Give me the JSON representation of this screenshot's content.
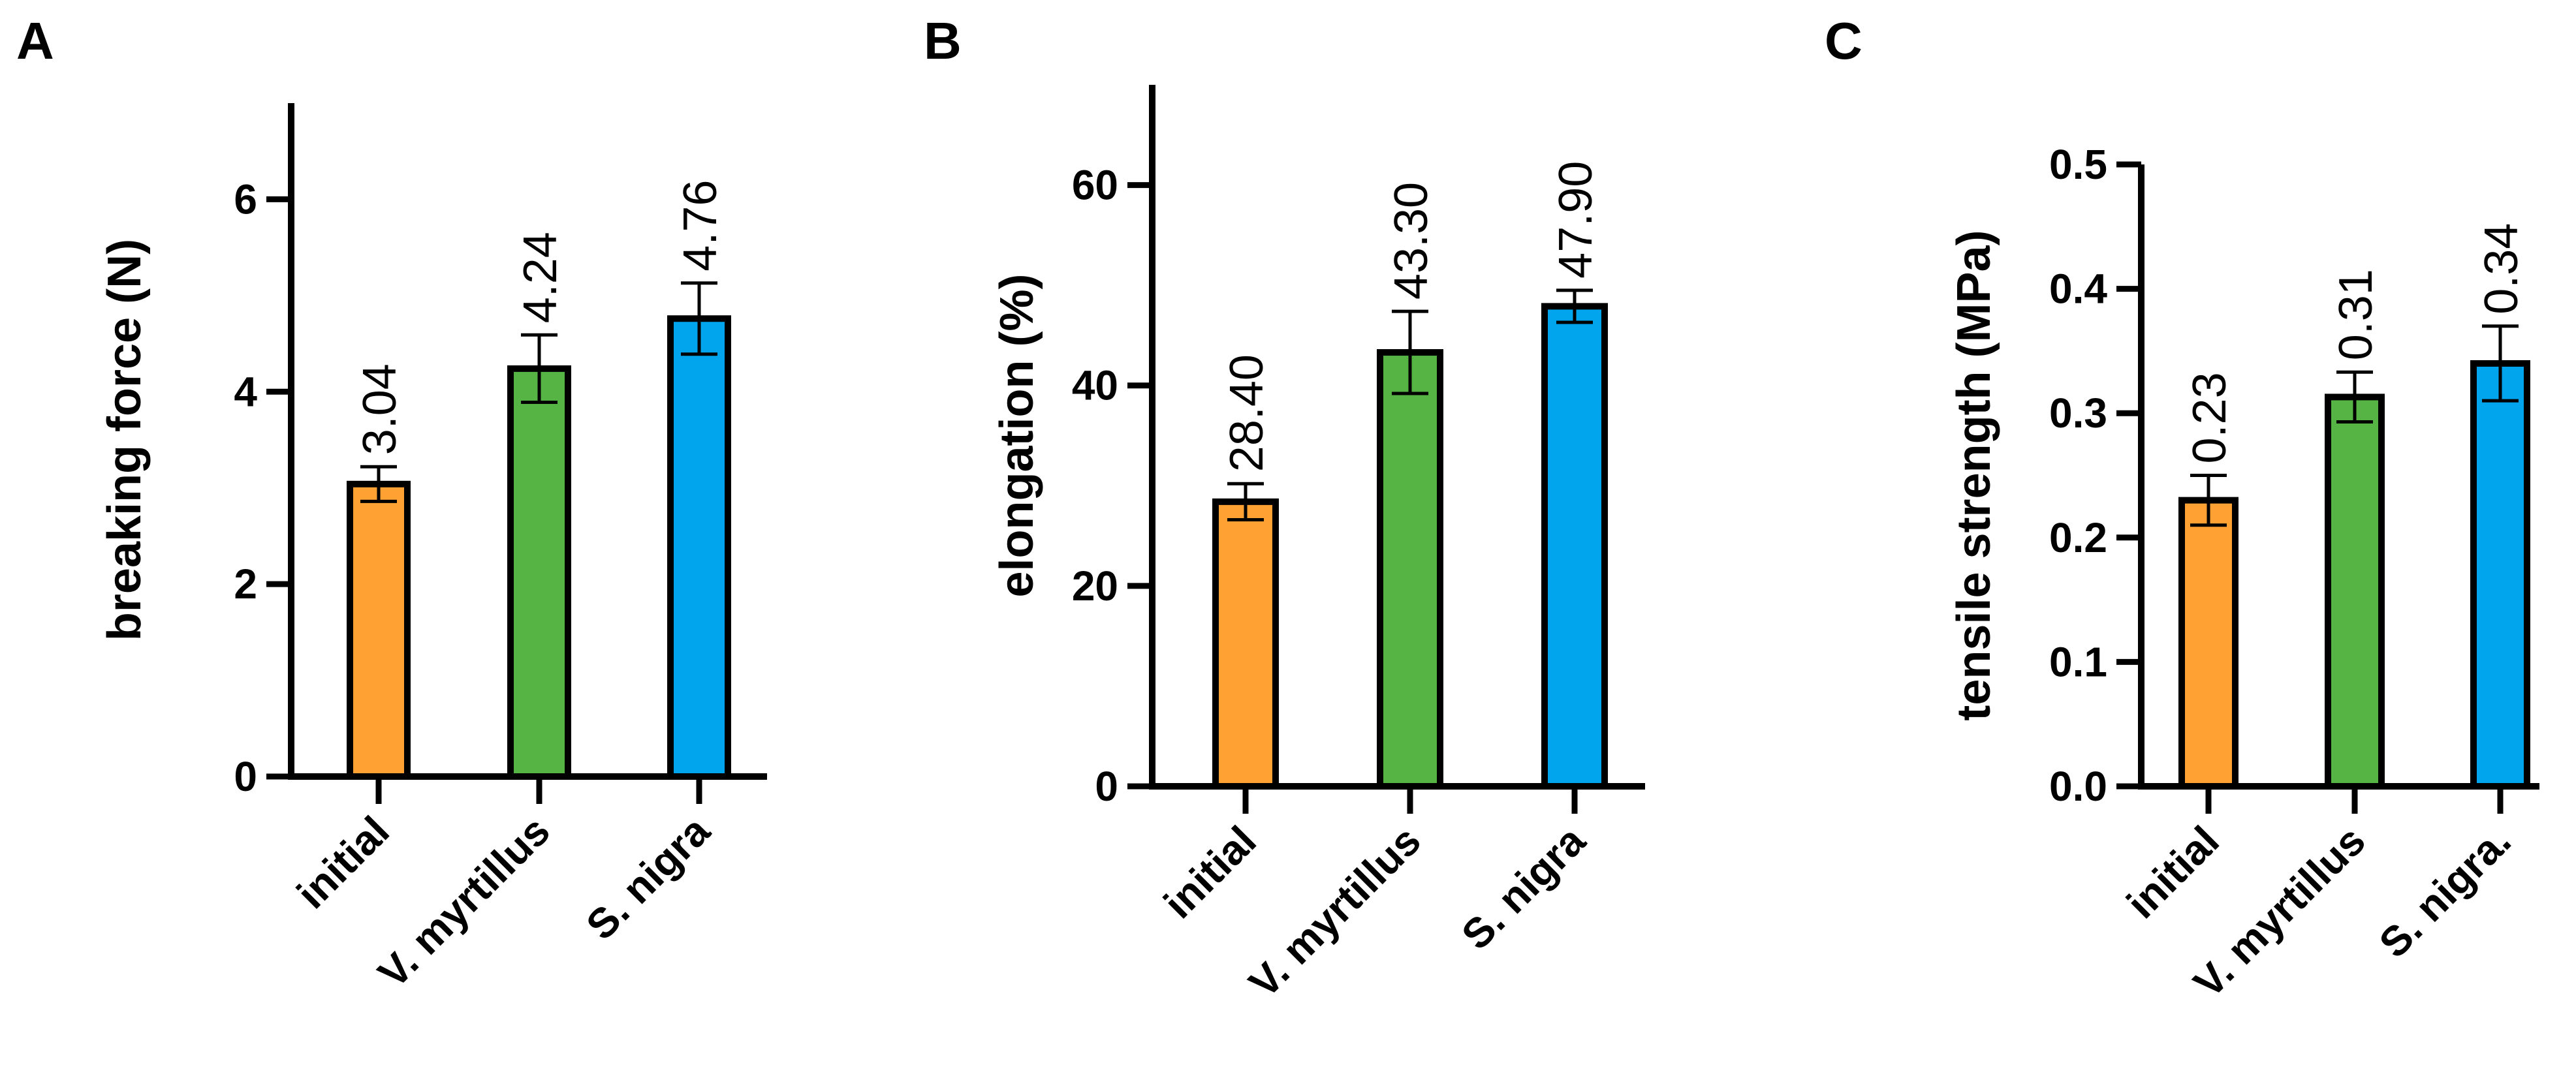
{
  "chart_data": [
    {
      "panel": "A",
      "type": "bar",
      "ylabel": "breaking force (N)",
      "ylim": [
        0,
        7
      ],
      "yticks": [
        "0",
        "2",
        "4",
        "6"
      ],
      "ytick_values": [
        0,
        2,
        4,
        6
      ],
      "categories": [
        "initial",
        "V. myrtillus",
        "S. nigra"
      ],
      "values": [
        3.04,
        4.24,
        4.76
      ],
      "errors": [
        0.18,
        0.35,
        0.37
      ],
      "data_labels": [
        "3.04",
        "4.24",
        "4.76"
      ],
      "colors": [
        "#FFA133",
        "#56B445",
        "#00A5EE"
      ]
    },
    {
      "panel": "B",
      "type": "bar",
      "ylabel": "elongation (%)",
      "ylim": [
        0,
        70
      ],
      "yticks": [
        "0",
        "20",
        "40",
        "60"
      ],
      "ytick_values": [
        0,
        20,
        40,
        60
      ],
      "categories": [
        "initial",
        "V. myrtillus",
        "S. nigra"
      ],
      "values": [
        28.4,
        43.3,
        47.9
      ],
      "errors": [
        1.8,
        4.1,
        1.6
      ],
      "data_labels": [
        "28.40",
        "43.30",
        "47.90"
      ],
      "colors": [
        "#FFA133",
        "#56B445",
        "#00A5EE"
      ]
    },
    {
      "panel": "C",
      "type": "bar",
      "ylabel": "tensile strength (MPa)",
      "ylim": [
        0,
        0.5
      ],
      "yticks": [
        "0.0",
        "0.1",
        "0.2",
        "0.3",
        "0.4",
        "0.5"
      ],
      "ytick_values": [
        0,
        0.1,
        0.2,
        0.3,
        0.4,
        0.5
      ],
      "categories": [
        "initial",
        "V. myrtillus",
        "S. nigra."
      ],
      "values": [
        0.23,
        0.313,
        0.34
      ],
      "errors": [
        0.02,
        0.02,
        0.03
      ],
      "data_labels": [
        "0.23",
        "0.31",
        "0.34"
      ],
      "colors": [
        "#FFA133",
        "#56B445",
        "#00A5EE"
      ]
    }
  ]
}
